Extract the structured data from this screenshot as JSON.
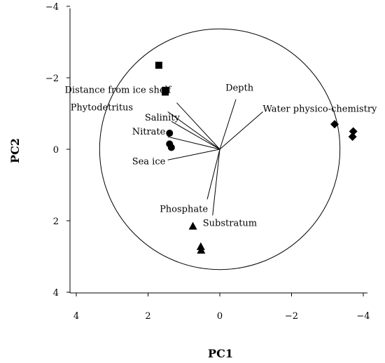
{
  "chart_data": {
    "type": "scatter",
    "title": "",
    "xlabel": "PC1",
    "ylabel": "PC2",
    "x_axis_reversed": true,
    "y_axis_reversed": true,
    "xlim": [
      4,
      -4
    ],
    "ylim": [
      -4,
      4
    ],
    "xticks": [
      {
        "value": 4,
        "label": "4"
      },
      {
        "value": 2,
        "label": "2"
      },
      {
        "value": 0,
        "label": "0"
      },
      {
        "value": -2,
        "label": "−2"
      },
      {
        "value": -4,
        "label": "−4"
      }
    ],
    "yticks": [
      {
        "value": -4,
        "label": "−4"
      },
      {
        "value": -2,
        "label": "−2"
      },
      {
        "value": 0,
        "label": "0"
      },
      {
        "value": 2,
        "label": "2"
      },
      {
        "value": 4,
        "label": "4"
      }
    ],
    "grid": false,
    "correlation_circle": {
      "center": [
        0,
        0
      ],
      "radius": 3.35
    },
    "series": [
      {
        "marker": "square",
        "points": [
          [
            1.7,
            -2.35
          ],
          [
            1.52,
            -1.65
          ],
          [
            1.52,
            -1.6
          ]
        ]
      },
      {
        "marker": "circle",
        "points": [
          [
            1.4,
            -0.45
          ],
          [
            1.4,
            -0.15
          ],
          [
            1.35,
            -0.05
          ]
        ]
      },
      {
        "marker": "diamond",
        "points": [
          [
            -3.2,
            -0.7
          ],
          [
            -3.72,
            -0.5
          ],
          [
            -3.7,
            -0.35
          ]
        ]
      },
      {
        "marker": "triangle",
        "points": [
          [
            0.75,
            2.15
          ],
          [
            0.53,
            2.72
          ],
          [
            0.52,
            2.82
          ]
        ]
      }
    ],
    "vectors": [
      {
        "label": "Distance from ice shelf",
        "x": 1.2,
        "y": -1.3
      },
      {
        "label": "Phytodetritus",
        "x": 1.45,
        "y": -1.05
      },
      {
        "label": "Salinity",
        "x": 1.35,
        "y": -0.78
      },
      {
        "label": "Nitrate",
        "x": 1.45,
        "y": -0.35
      },
      {
        "label": "Sea ice",
        "x": 1.45,
        "y": 0.3
      },
      {
        "label": "Phosphate",
        "x": 0.35,
        "y": 1.4
      },
      {
        "label": "Substratum",
        "x": 0.2,
        "y": 1.85
      },
      {
        "label": "Depth",
        "x": -0.45,
        "y": -1.4
      },
      {
        "label": "Water physico-chemistry",
        "x": -1.2,
        "y": -1.05
      }
    ]
  }
}
